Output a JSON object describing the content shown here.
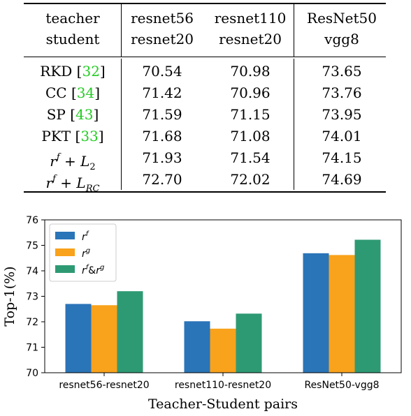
{
  "table": {
    "header": {
      "row_label_top": "teacher",
      "row_label_bottom": "student",
      "columns": [
        {
          "teacher": "resnet56",
          "student": "resnet20"
        },
        {
          "teacher": "resnet110",
          "student": "resnet20"
        },
        {
          "teacher": "ResNet50",
          "student": "vgg8"
        }
      ]
    },
    "rows": [
      {
        "method": "RKD",
        "cite": "32",
        "values": [
          "70.54",
          "70.98",
          "73.65"
        ]
      },
      {
        "method": "CC",
        "cite": "34",
        "values": [
          "71.42",
          "70.96",
          "73.76"
        ]
      },
      {
        "method": "SP",
        "cite": "43",
        "values": [
          "71.59",
          "71.15",
          "73.95"
        ]
      },
      {
        "method": "PKT",
        "cite": "33",
        "values": [
          "71.68",
          "71.08",
          "74.01"
        ]
      },
      {
        "method_math": {
          "base": "r",
          "sup": "f",
          "plus": "+",
          "loss": "L",
          "sub": "2"
        },
        "values": [
          "71.93",
          "71.54",
          "74.15"
        ]
      },
      {
        "method_math": {
          "base": "r",
          "sup": "f",
          "plus": "+",
          "loss": "L",
          "sub": "RC"
        },
        "values": [
          "72.70",
          "72.02",
          "74.69"
        ]
      }
    ]
  },
  "chart_data": {
    "type": "bar",
    "xlabel": "Teacher-Student pairs",
    "ylabel": "Top-1(%)",
    "ylim": [
      70,
      76
    ],
    "yticks": [
      "70",
      "71",
      "72",
      "73",
      "74",
      "75",
      "76"
    ],
    "categories": [
      "resnet56-resnet20",
      "resnet110-resnet20",
      "ResNet50-vgg8"
    ],
    "legend_position": "top-left",
    "series": [
      {
        "name": "r^f",
        "legend": {
          "base": "r",
          "sup": "f"
        },
        "color": "#2a74b8",
        "values": [
          72.7,
          72.02,
          74.69
        ]
      },
      {
        "name": "r^g",
        "legend": {
          "base": "r",
          "sup": "g"
        },
        "color": "#f9a21b",
        "values": [
          72.65,
          71.73,
          74.62
        ]
      },
      {
        "name": "r^f&r^g",
        "legend": {
          "base": "r",
          "sup": "f",
          "amp": "&",
          "base2": "r",
          "sup2": "g"
        },
        "color": "#2e9a73",
        "values": [
          73.2,
          72.32,
          75.22
        ]
      }
    ]
  }
}
